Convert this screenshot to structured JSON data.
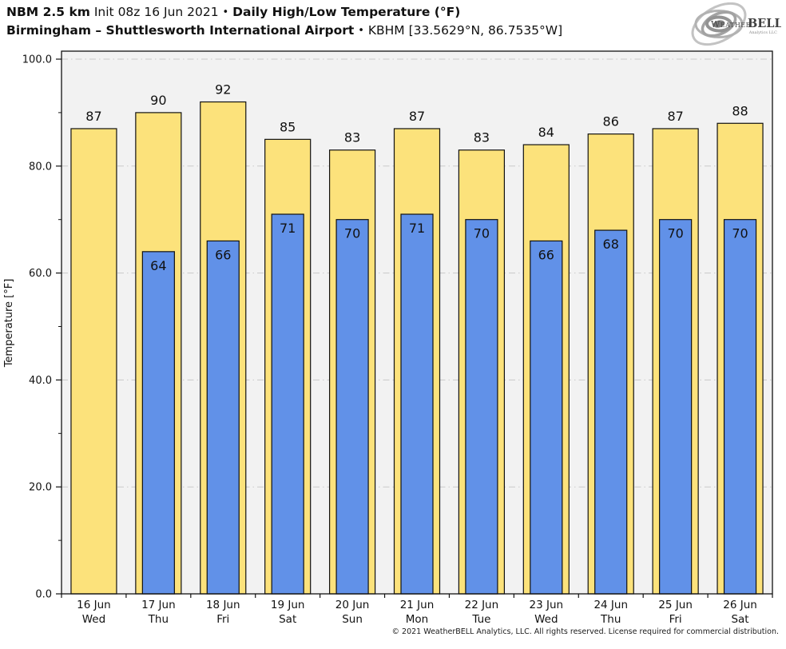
{
  "header": {
    "model": "NBM 2.5 km",
    "init": "Init 08z 16 Jun 2021",
    "sep1": "•",
    "product": "Daily High/Low Temperature (°F)",
    "location": "Birmingham – Shuttlesworth International Airport",
    "sep2": "•",
    "station": "KBHM [33.5629°N, 86.7535°W]"
  },
  "logo": {
    "brand_weather": "Weather",
    "brand_bell": "BELL",
    "subtitle": "Analytics LLC"
  },
  "footer": {
    "copyright": "© 2021 WeatherBELL Analytics, LLC. All rights reserved. License required for commercial distribution."
  },
  "chart_data": {
    "type": "bar",
    "title": "NBM 2.5 km Daily High/Low Temperature (°F) — Birmingham (KBHM)",
    "xlabel": "",
    "ylabel": "Temperature [°F]",
    "ylim": [
      0,
      100
    ],
    "grid": "horizontal dash-dot at major ticks, plot background light gray",
    "legend_position": "none",
    "yticks_major": [
      0,
      20,
      40,
      60,
      80,
      100
    ],
    "ytick_labels": [
      "0.0",
      "20.0",
      "40.0",
      "60.0",
      "80.0",
      "100.0"
    ],
    "yticks_minor": [
      10,
      30,
      50,
      70,
      90
    ],
    "categories": [
      {
        "date": "16 Jun",
        "day": "Wed"
      },
      {
        "date": "17 Jun",
        "day": "Thu"
      },
      {
        "date": "18 Jun",
        "day": "Fri"
      },
      {
        "date": "19 Jun",
        "day": "Sat"
      },
      {
        "date": "20 Jun",
        "day": "Sun"
      },
      {
        "date": "21 Jun",
        "day": "Mon"
      },
      {
        "date": "22 Jun",
        "day": "Tue"
      },
      {
        "date": "23 Jun",
        "day": "Wed"
      },
      {
        "date": "24 Jun",
        "day": "Thu"
      },
      {
        "date": "25 Jun",
        "day": "Fri"
      },
      {
        "date": "26 Jun",
        "day": "Sat"
      }
    ],
    "series": [
      {
        "name": "High",
        "color": "#FCE27B",
        "values": [
          87,
          90,
          92,
          85,
          83,
          87,
          83,
          84,
          86,
          87,
          88
        ]
      },
      {
        "name": "Low",
        "color": "#6191E8",
        "values": [
          null,
          64,
          66,
          71,
          70,
          71,
          70,
          66,
          68,
          70,
          70
        ]
      }
    ],
    "colors": {
      "plot_bg": "#F2F2F2",
      "grid": "#C9C9C9",
      "bar_border": "#111111",
      "axis": "#111111",
      "label_text": "#111111"
    }
  }
}
